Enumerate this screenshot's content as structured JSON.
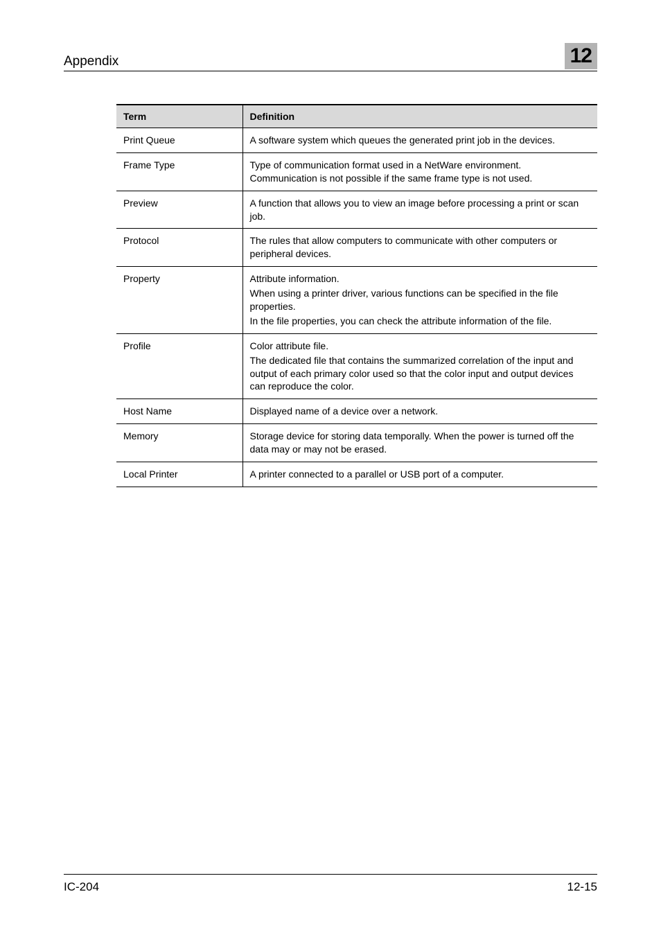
{
  "header": {
    "section": "Appendix",
    "chapter_number": "12"
  },
  "table": {
    "term_header": "Term",
    "definition_header": "Definition",
    "rows": [
      {
        "term": "Print Queue",
        "definition_lines": [
          "A software system which queues the generated print job in the devices."
        ]
      },
      {
        "term": "Frame Type",
        "definition_lines": [
          "Type of communication format used in a NetWare environment. Communication is not possible if the same frame type is not used."
        ]
      },
      {
        "term": "Preview",
        "definition_lines": [
          "A function that allows you to view an image before processing a print or scan job."
        ]
      },
      {
        "term": "Protocol",
        "definition_lines": [
          "The rules that allow computers to communicate with other computers or peripheral devices."
        ]
      },
      {
        "term": "Property",
        "definition_lines": [
          "Attribute information.",
          "When using a printer driver, various functions can be specified in the file properties.",
          "In the file properties, you can check the attribute information of the file."
        ]
      },
      {
        "term": "Profile",
        "definition_lines": [
          "Color attribute file.",
          "The dedicated file that contains the summarized correlation of the input and output of each primary color used so that the color input and output devices can reproduce the color."
        ]
      },
      {
        "term": "Host Name",
        "definition_lines": [
          "Displayed name of a device over a network."
        ]
      },
      {
        "term": "Memory",
        "definition_lines": [
          "Storage device for storing data temporally. When the power is turned off the data may or may not be erased."
        ]
      },
      {
        "term": "Local Printer",
        "definition_lines": [
          "A printer connected to a parallel or USB port of a computer."
        ]
      }
    ]
  },
  "footer": {
    "left": "IC-204",
    "right": "12-15"
  }
}
